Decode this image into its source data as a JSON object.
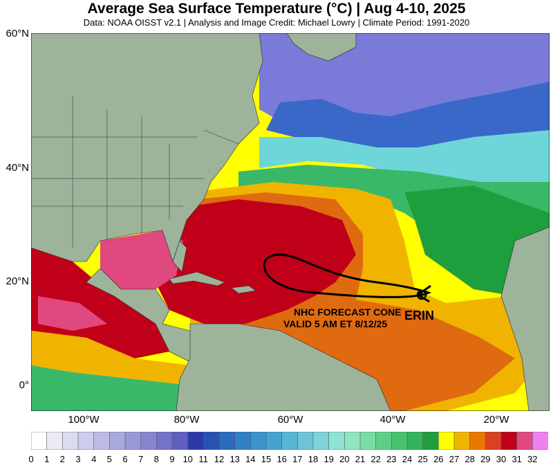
{
  "header": {
    "title": "Average Sea Surface Temperature (°C) | Aug 4-10, 2025",
    "subtitle": "Data: NOAA OISST v2.1 | Analysis and Image Credit: Michael Lowry | Climate Period: 1991-2020"
  },
  "axes": {
    "lat_labels": [
      "60°N",
      "40°N",
      "20°N",
      "0°"
    ],
    "lon_labels": [
      "100°W",
      "80°W",
      "60°W",
      "40°W",
      "20°W"
    ]
  },
  "annotations": {
    "cone_line1": "NHC FORECAST CONE",
    "cone_line2": "VALID 5 AM ET 8/12/25",
    "storm_name": "ERIN"
  },
  "colorbar": {
    "ticks": [
      "0",
      "1",
      "2",
      "3",
      "4",
      "5",
      "6",
      "7",
      "8",
      "9",
      "10",
      "11",
      "12",
      "13",
      "14",
      "15",
      "16",
      "17",
      "18",
      "19",
      "20",
      "21",
      "22",
      "23",
      "24",
      "25",
      "26",
      "27",
      "28",
      "29",
      "30",
      "31",
      "32"
    ],
    "colors": [
      "#ffffff",
      "#ebebf7",
      "#dcdcf1",
      "#cdcdec",
      "#bcbce6",
      "#a9a9df",
      "#9898d9",
      "#8585d2",
      "#7373cb",
      "#5f5fc3",
      "#2c3aa8",
      "#2752b3",
      "#2a6abf",
      "#2f80c6",
      "#3a93cc",
      "#45a3cf",
      "#58b5d3",
      "#6cc4d6",
      "#7ed4d8",
      "#8ee4d4",
      "#8ee6be",
      "#79dca3",
      "#5fcf88",
      "#48c26f",
      "#33b45a",
      "#1f9e3e",
      "#ffff00",
      "#f0b400",
      "#e87800",
      "#dc4020",
      "#c00018",
      "#e04880",
      "#f080f0"
    ]
  },
  "map_colors": {
    "land": "#9db39a",
    "cold": "#7a7ad8",
    "cool_blue": "#2f6cc4",
    "cyan": "#6ed6d8",
    "teal": "#39b86a",
    "green": "#1f9e3e",
    "yellow": "#ffff00",
    "orange": "#f0b400",
    "dark_orange": "#e06a10",
    "red": "#c00018",
    "pink": "#e04880",
    "border": "#2a2a2a"
  }
}
